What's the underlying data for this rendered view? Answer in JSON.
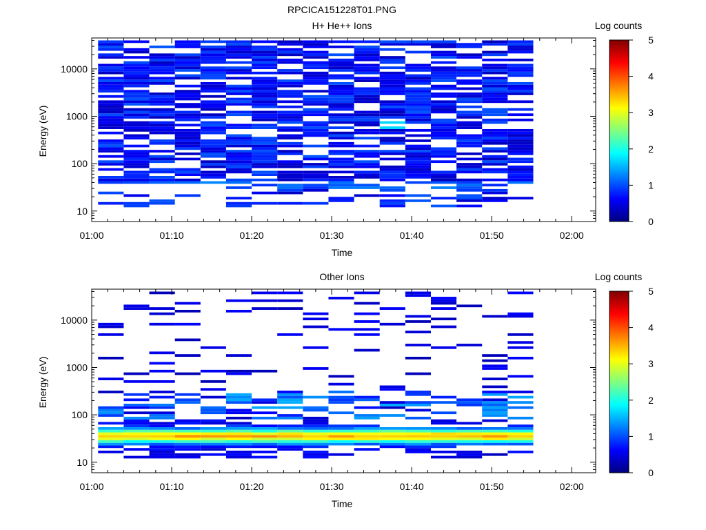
{
  "figure_title": "RPCICA151228T01.PNG",
  "chart_data": [
    {
      "type": "heatmap",
      "title": "H+ He++ Ions",
      "xlabel": "Time",
      "ylabel": "Energy (eV)",
      "colorbar_label": "Log counts",
      "colorbar_ticks": [
        "0",
        "1",
        "2",
        "3",
        "4",
        "5"
      ],
      "colorbar_range": [
        0,
        5
      ],
      "x_ticks": [
        "01:00",
        "01:10",
        "01:20",
        "01:30",
        "01:40",
        "01:50",
        "02:00"
      ],
      "xlim_minutes": [
        0,
        63
      ],
      "y_scale": "log",
      "y_ticks": [
        "10",
        "100",
        "1000",
        "10000"
      ],
      "ylim": [
        6,
        45000
      ],
      "colormap": [
        "#00007f",
        "#0000ff",
        "#00ffff",
        "#ffff00",
        "#ff0000",
        "#7f0000"
      ],
      "time_bins_minutes": [
        2.4,
        5.6,
        8.8,
        12.0,
        15.2,
        18.4,
        21.6,
        24.8,
        28.0,
        31.2,
        34.4,
        37.6,
        40.8,
        44.0,
        47.2,
        50.4,
        53.6
      ],
      "notes": "dense low-level (log counts ~0.3-1.0) coverage from ~15 eV to ~40 keV; brief peak ~1.7 near 650 eV at 01:39"
    },
    {
      "type": "heatmap",
      "title": "Other Ions",
      "xlabel": "Time",
      "ylabel": "Energy (eV)",
      "colorbar_label": "Log counts",
      "colorbar_ticks": [
        "0",
        "1",
        "2",
        "3",
        "4",
        "5"
      ],
      "colorbar_range": [
        0,
        5
      ],
      "x_ticks": [
        "01:00",
        "01:10",
        "01:20",
        "01:30",
        "01:40",
        "01:50",
        "02:00"
      ],
      "xlim_minutes": [
        0,
        63
      ],
      "y_scale": "log",
      "y_ticks": [
        "10",
        "100",
        "1000",
        "10000"
      ],
      "ylim": [
        6,
        45000
      ],
      "colormap": [
        "#00007f",
        "#0000ff",
        "#00ffff",
        "#ffff00",
        "#ff0000",
        "#7f0000"
      ],
      "time_bins_minutes": [
        2.4,
        5.6,
        8.8,
        12.0,
        15.2,
        18.4,
        21.6,
        24.8,
        28.0,
        31.2,
        34.4,
        37.6,
        40.8,
        44.0,
        47.2,
        50.4,
        53.6
      ],
      "notes": "intense band ~25-50 eV with log counts ~2.5-3.3; sparse counts up to ~8 keV"
    }
  ]
}
